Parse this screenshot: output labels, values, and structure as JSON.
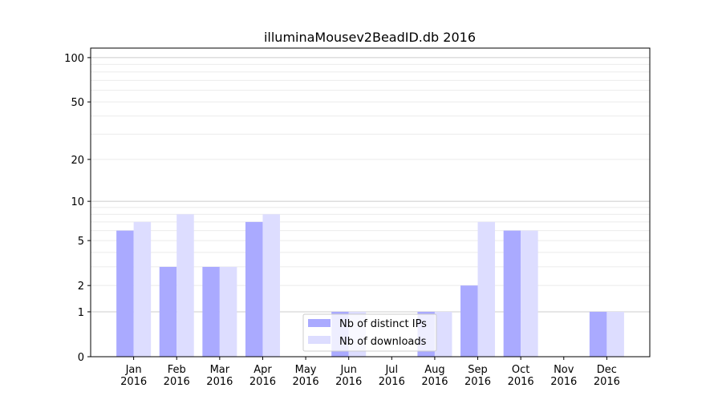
{
  "chart_data": {
    "type": "bar",
    "title": "illuminaMousev2BeadID.db 2016",
    "xlabel": "",
    "ylabel": "",
    "y_scale": "symlog",
    "ylim": [
      0,
      116
    ],
    "y_ticks": [
      0,
      1,
      2,
      5,
      10,
      20,
      50,
      100
    ],
    "grid": true,
    "legend_position": "bottom-center",
    "categories": [
      "Jan\n2016",
      "Feb\n2016",
      "Mar\n2016",
      "Apr\n2016",
      "May\n2016",
      "Jun\n2016",
      "Jul\n2016",
      "Aug\n2016",
      "Sep\n2016",
      "Oct\n2016",
      "Nov\n2016",
      "Dec\n2016"
    ],
    "series": [
      {
        "name": "Nb of distinct IPs",
        "color": "#aaaaff",
        "values": [
          6,
          3,
          3,
          7,
          0,
          1,
          0,
          1,
          2,
          6,
          0,
          1
        ]
      },
      {
        "name": "Nb of downloads",
        "color": "#ddddff",
        "values": [
          7,
          8,
          3,
          8,
          0,
          1,
          0,
          1,
          7,
          6,
          0,
          1
        ]
      }
    ]
  }
}
